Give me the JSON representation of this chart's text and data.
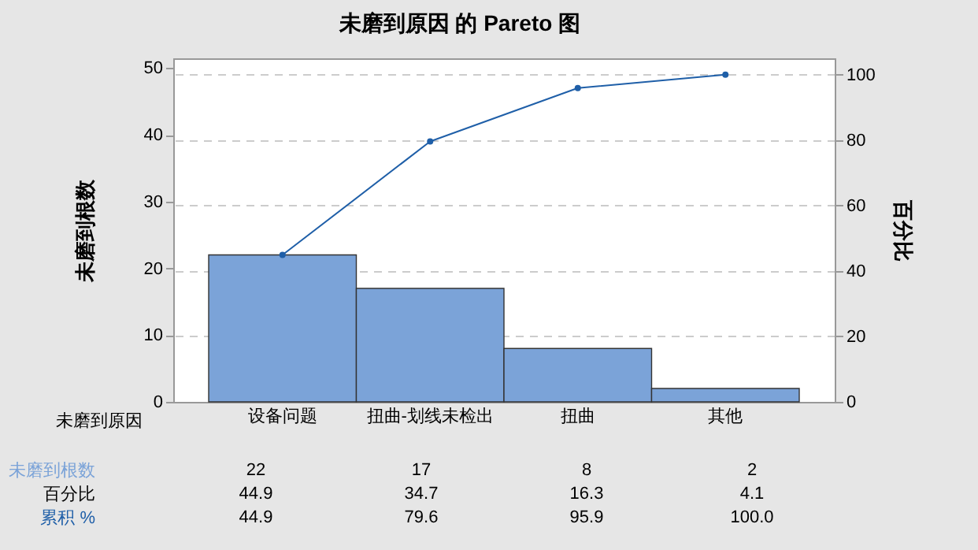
{
  "chart_data": {
    "type": "bar",
    "title": "未磨到原因 的 Pareto 图",
    "xlabel": "未磨到原因",
    "ylabel": "未磨到根数",
    "y2label": "百分比",
    "categories": [
      "设备问题",
      "扭曲-划线未检出",
      "扭曲",
      "其他"
    ],
    "series": [
      {
        "name": "未磨到根数",
        "color": "#7ba3d8",
        "values": [
          22,
          17,
          8,
          2
        ],
        "value_labels": [
          "22",
          "17",
          "8",
          "2"
        ]
      },
      {
        "name": "累积 %",
        "type": "line",
        "axis": "y2",
        "color": "#1f5fa8",
        "values": [
          44.9,
          79.6,
          95.9,
          100.0
        ],
        "value_labels": [
          "44.9",
          "79.6",
          "95.9",
          "100.0"
        ]
      }
    ],
    "annotations": [
      "百分比",
      "44.9",
      "34.7",
      "16.3",
      "4.1"
    ],
    "ylim": [
      0,
      51.45
    ],
    "yticks": [
      0,
      10,
      20,
      30,
      40,
      50
    ],
    "y2lim": [
      0,
      105
    ],
    "y2ticks": [
      0,
      20,
      40,
      60,
      80,
      100
    ],
    "grid": "y2",
    "marker": "circle"
  }
}
